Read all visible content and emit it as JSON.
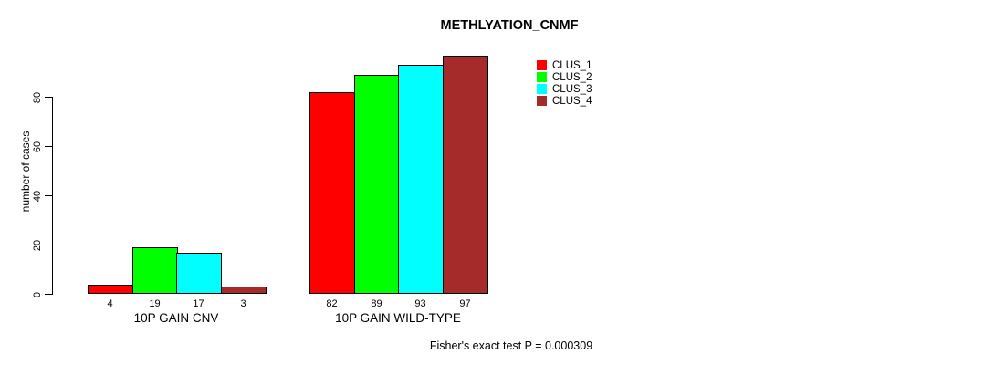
{
  "chart_data": {
    "type": "bar",
    "title": "METHLYATION_CNMF",
    "ylabel": "number of cases",
    "xlabel": "",
    "yticks": [
      0,
      20,
      40,
      60,
      80
    ],
    "ylim": [
      0,
      97
    ],
    "grid": false,
    "legend_position": "top-right",
    "groups": [
      "10P GAIN CNV",
      "10P GAIN WILD-TYPE"
    ],
    "series": [
      {
        "name": "CLUS_1",
        "color": "#FF0000",
        "values": [
          4,
          82
        ]
      },
      {
        "name": "CLUS_2",
        "color": "#00FF00",
        "values": [
          19,
          89
        ]
      },
      {
        "name": "CLUS_3",
        "color": "#00FFFF",
        "values": [
          17,
          93
        ]
      },
      {
        "name": "CLUS_4",
        "color": "#A52A2A",
        "values": [
          3,
          97
        ]
      }
    ],
    "bar_value_labels_shown": true,
    "footnote": "Fisher's exact test P = 0.000309"
  }
}
